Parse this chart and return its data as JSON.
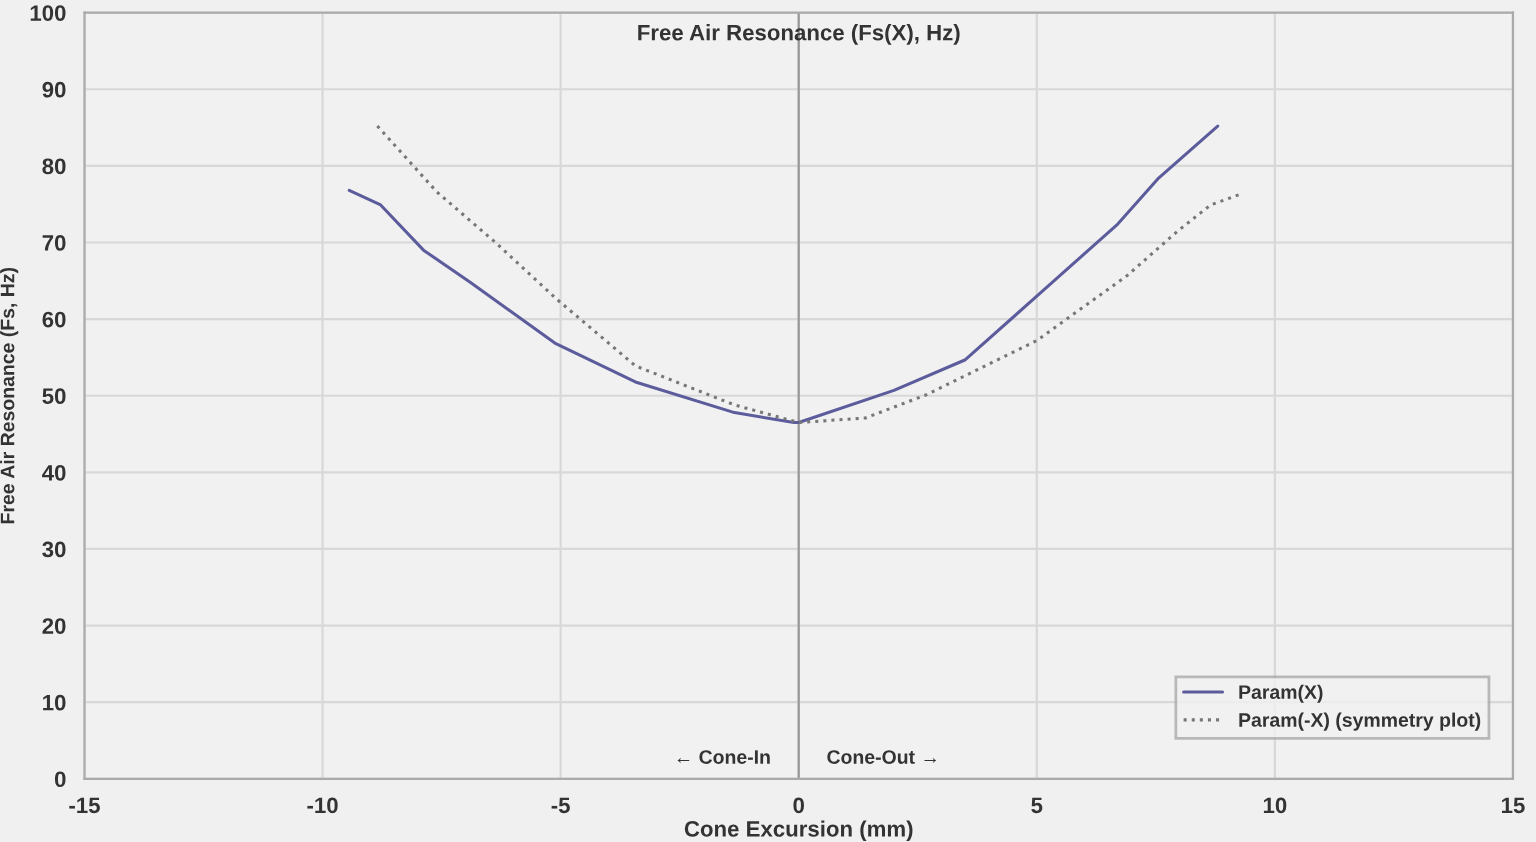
{
  "chart_data": {
    "type": "line",
    "title": "Free Air Resonance (Fs(X), Hz)",
    "xlabel": "Cone Excursion (mm)",
    "ylabel": "Free Air Resonance (Fs, Hz)",
    "series": [
      {
        "name": "Param(X)",
        "color": "#5c5c9c",
        "line_style": "solid",
        "x": [
          -9.44,
          -8.78,
          -7.88,
          -6.9,
          -5.1,
          -3.43,
          -1.35,
          -0.1,
          0,
          2.0,
          3.5,
          5.0,
          6.7,
          7.54,
          8.8
        ],
        "values": [
          76.8,
          74.9,
          69,
          64.8,
          56.8,
          51.8,
          47.8,
          46.5,
          46.5,
          50.7,
          54.7,
          63,
          72.4,
          78.3,
          85.2
        ]
      },
      {
        "name": "Param(-X) (symmetry plot)",
        "color": "#777777",
        "line_style": "dotted",
        "x": [
          -8.85,
          -7.6,
          -6.35,
          -5.1,
          -3.43,
          -1.35,
          0,
          1.4,
          2.67,
          5.0,
          6.9,
          7.96,
          8.65,
          9.32
        ],
        "values": [
          85.2,
          76.6,
          69.9,
          62.7,
          53.9,
          48.8,
          46.5,
          47.1,
          50.1,
          57.2,
          65.7,
          71.5,
          74.9,
          76.4
        ]
      }
    ],
    "xlim": [
      -15,
      15
    ],
    "xticks": [
      -15,
      -10,
      -5,
      0,
      5,
      10,
      15
    ],
    "ylim": [
      0,
      100
    ],
    "yticks": [
      0,
      10,
      20,
      30,
      40,
      50,
      60,
      70,
      80,
      90,
      100
    ],
    "grid": true,
    "legend": "bottom right",
    "ref_lines": [
      {
        "axis": "x",
        "value": 0,
        "color": "#999999"
      }
    ],
    "annotations": [
      "← Cone-In",
      "Cone-Out →"
    ]
  }
}
